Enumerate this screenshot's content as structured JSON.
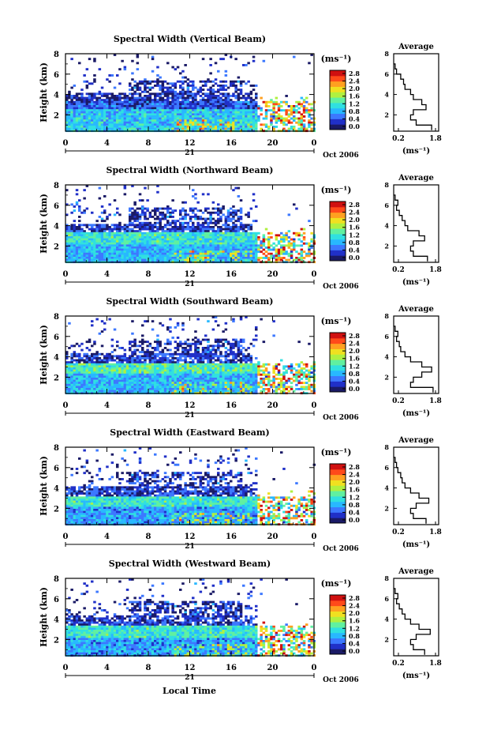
{
  "figure": {
    "x_axis_label": "Local Time",
    "date_label": "Oct 2006",
    "day_label": "21",
    "y_axis_label": "Height (km)",
    "colorbar_unit": "(ms⁻¹)",
    "colorbar_ticks": [
      "0.0",
      "0.4",
      "0.8",
      "1.2",
      "1.6",
      "2.0",
      "2.4",
      "2.8"
    ],
    "average_title": "Average",
    "average_xlabel": "(ms⁻¹)",
    "average_xticks": [
      "0.2",
      "1.8"
    ],
    "time_ticks": [
      "0",
      "4",
      "8",
      "12",
      "16",
      "20",
      "0"
    ],
    "height_ticks": [
      "2",
      "4",
      "6",
      "8"
    ],
    "colormap": [
      "#1a1a66",
      "#2030c8",
      "#3c78ff",
      "#28b8ff",
      "#30e0e0",
      "#60f0a0",
      "#b0f040",
      "#f0e020",
      "#ffa020",
      "#ff4a1a",
      "#d01010"
    ]
  },
  "chart_data": [
    {
      "type": "heatmap",
      "title": "Spectral Width (Vertical Beam)",
      "x_range": [
        0,
        24
      ],
      "y_range": [
        0.4,
        8
      ],
      "z_range": [
        0.0,
        2.8
      ],
      "layers": [
        {
          "top": 2.6,
          "value": 1.0
        },
        {
          "top": 3.4,
          "value": 0.5
        },
        {
          "top": 4.3,
          "value": 0.3
        },
        {
          "top": 5.5,
          "value": 0.2
        }
      ],
      "average_profile": {
        "height": [
          0.5,
          1.0,
          1.5,
          2.0,
          2.5,
          3.0,
          3.5,
          4.0,
          4.5,
          5.0,
          5.5,
          6.0,
          6.5,
          7.0
        ],
        "value": [
          1.55,
          1.0,
          0.8,
          0.9,
          1.35,
          1.2,
          0.9,
          0.8,
          0.6,
          0.55,
          0.45,
          0.3,
          0.25,
          0.2
        ]
      }
    },
    {
      "type": "heatmap",
      "title": "Spectral Width (Northward Beam)",
      "x_range": [
        0,
        24
      ],
      "y_range": [
        0.4,
        8
      ],
      "z_range": [
        0.0,
        2.8
      ],
      "layers": [
        {
          "top": 2.2,
          "value": 0.9
        },
        {
          "top": 3.4,
          "value": 1.2
        },
        {
          "top": 4.3,
          "value": 0.4
        },
        {
          "top": 5.8,
          "value": 0.3
        }
      ],
      "average_profile": {
        "height": [
          0.5,
          1.0,
          1.5,
          2.0,
          2.5,
          3.0,
          3.5,
          4.0,
          4.5,
          5.0,
          5.5,
          6.0,
          6.5,
          7.0
        ],
        "value": [
          1.4,
          0.9,
          0.8,
          0.9,
          1.3,
          1.1,
          0.7,
          0.6,
          0.5,
          0.4,
          0.3,
          0.35,
          0.25,
          0.2
        ]
      }
    },
    {
      "type": "heatmap",
      "title": "Spectral Width (Southward Beam)",
      "x_range": [
        0,
        24
      ],
      "y_range": [
        0.4,
        8
      ],
      "z_range": [
        0.0,
        2.8
      ],
      "layers": [
        {
          "top": 2.4,
          "value": 0.9
        },
        {
          "top": 3.5,
          "value": 1.3
        },
        {
          "top": 4.4,
          "value": 0.4
        },
        {
          "top": 5.8,
          "value": 0.3
        }
      ],
      "average_profile": {
        "height": [
          0.5,
          1.0,
          1.5,
          2.0,
          2.5,
          3.0,
          3.5,
          4.0,
          4.5,
          5.0,
          5.5,
          6.0,
          6.5,
          7.0
        ],
        "value": [
          1.6,
          0.8,
          0.9,
          1.2,
          1.55,
          1.2,
          0.8,
          0.6,
          0.45,
          0.4,
          0.3,
          0.35,
          0.25,
          0.2
        ]
      }
    },
    {
      "type": "heatmap",
      "title": "Spectral Width (Eastward Beam)",
      "x_range": [
        0,
        24
      ],
      "y_range": [
        0.4,
        8
      ],
      "z_range": [
        0.0,
        2.8
      ],
      "layers": [
        {
          "top": 2.2,
          "value": 0.8
        },
        {
          "top": 3.3,
          "value": 1.2
        },
        {
          "top": 4.3,
          "value": 0.4
        },
        {
          "top": 5.7,
          "value": 0.3
        }
      ],
      "average_profile": {
        "height": [
          0.5,
          1.0,
          1.5,
          2.0,
          2.5,
          3.0,
          3.5,
          4.0,
          4.5,
          5.0,
          5.5,
          6.0,
          6.5,
          7.0
        ],
        "value": [
          1.35,
          0.9,
          0.8,
          1.0,
          1.45,
          1.1,
          0.8,
          0.6,
          0.5,
          0.45,
          0.35,
          0.3,
          0.25,
          0.2
        ]
      }
    },
    {
      "type": "heatmap",
      "title": "Spectral Width (Westward Beam)",
      "x_range": [
        0,
        24
      ],
      "y_range": [
        0.4,
        8
      ],
      "z_range": [
        0.0,
        2.8
      ],
      "layers": [
        {
          "top": 2.3,
          "value": 0.8
        },
        {
          "top": 3.4,
          "value": 1.2
        },
        {
          "top": 4.4,
          "value": 0.4
        },
        {
          "top": 5.9,
          "value": 0.3
        }
      ],
      "average_profile": {
        "height": [
          0.5,
          1.0,
          1.5,
          2.0,
          2.5,
          3.0,
          3.5,
          4.0,
          4.5,
          5.0,
          5.5,
          6.0,
          6.5,
          7.0
        ],
        "value": [
          1.3,
          0.9,
          0.8,
          1.0,
          1.5,
          1.1,
          0.8,
          0.6,
          0.5,
          0.4,
          0.3,
          0.35,
          0.25,
          0.2
        ]
      }
    }
  ]
}
